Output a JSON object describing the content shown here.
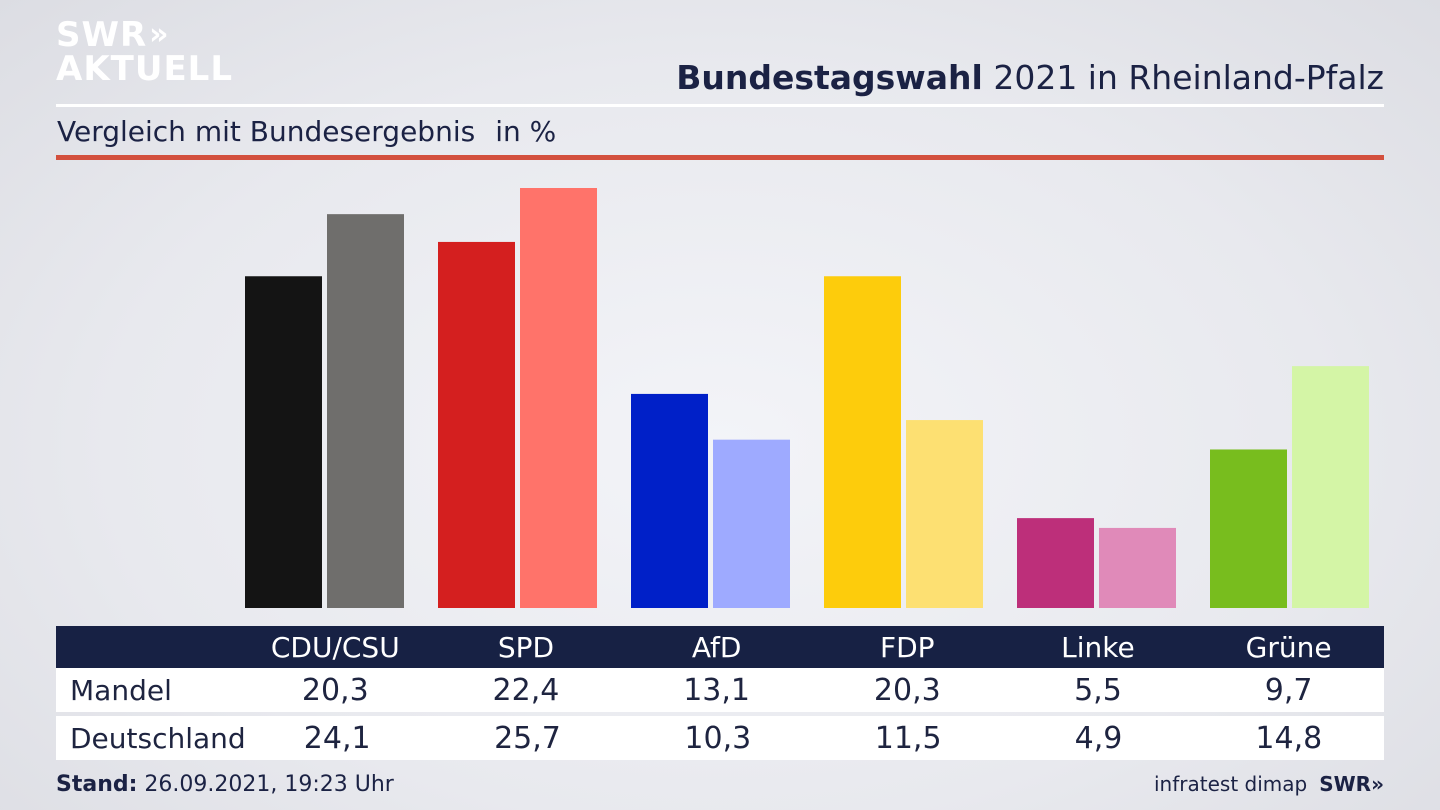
{
  "header": {
    "logo_line1": "SWR",
    "logo_chevrons": "»",
    "logo_line2": "AKTUELL",
    "title_bold": "Bundestagswahl",
    "title_rest": " 2021 in Rheinland-Pfalz",
    "subtitle": "Vergleich mit Bundesergebnis",
    "unit": "in %"
  },
  "table": {
    "rows": [
      {
        "label": "Mandel"
      },
      {
        "label": "Deutschland"
      }
    ]
  },
  "footer": {
    "stand_label": "Stand:",
    "stand_value": " 26.09.2021, 19:23 Uhr",
    "source": "infratest dimap",
    "source_logo": "SWR»"
  },
  "chart_data": {
    "type": "bar",
    "categories": [
      "CDU/CSU",
      "SPD",
      "AfD",
      "FDP",
      "Linke",
      "Grüne"
    ],
    "series": [
      {
        "name": "Mandel",
        "values": [
          20.3,
          22.4,
          13.1,
          20.3,
          5.5,
          9.7
        ],
        "value_labels": [
          "20,3",
          "22,4",
          "13,1",
          "20,3",
          "5,5",
          "9,7"
        ]
      },
      {
        "name": "Deutschland",
        "values": [
          24.1,
          25.7,
          10.3,
          11.5,
          4.9,
          14.8
        ],
        "value_labels": [
          "24,1",
          "25,7",
          "10,3",
          "11,5",
          "4,9",
          "14,8"
        ]
      }
    ],
    "colors": {
      "series0": [
        "#141414",
        "#d41f1f",
        "#0020c8",
        "#fdcc0c",
        "#bd2f7a",
        "#78bd1e"
      ],
      "series1": [
        "#6f6e6c",
        "#ff736a",
        "#9eaaff",
        "#fde072",
        "#e08ab9",
        "#d4f5a6"
      ]
    },
    "ylim": [
      0,
      26
    ]
  }
}
